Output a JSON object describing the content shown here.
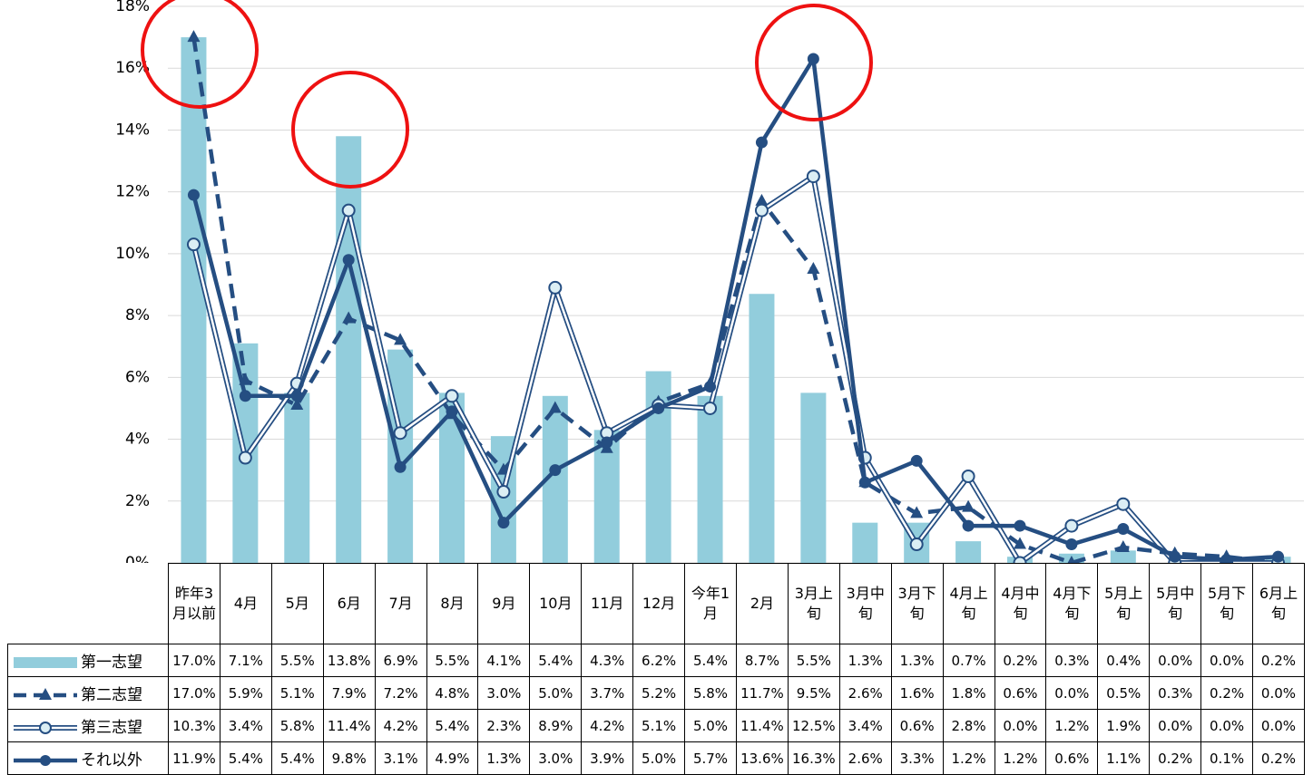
{
  "chart_data": {
    "type": "combo",
    "categories": [
      "昨年3月以前",
      "4月",
      "5月",
      "6月",
      "7月",
      "8月",
      "9月",
      "10月",
      "11月",
      "12月",
      "今年1月",
      "2月",
      "3月上旬",
      "3月中旬",
      "3月下旬",
      "4月上旬",
      "4月中旬",
      "4月下旬",
      "5月上旬",
      "5月中旬",
      "5月下旬",
      "6月上旬"
    ],
    "ylim": [
      0,
      18
    ],
    "yticks": [
      {
        "value": 0,
        "label": "0%"
      },
      {
        "value": 2,
        "label": "2%"
      },
      {
        "value": 4,
        "label": "4%"
      },
      {
        "value": 6,
        "label": "6%"
      },
      {
        "value": 8,
        "label": "8%"
      },
      {
        "value": 10,
        "label": "10%"
      },
      {
        "value": 12,
        "label": "12%"
      },
      {
        "value": 14,
        "label": "14%"
      },
      {
        "value": 16,
        "label": "16%"
      },
      {
        "value": 18,
        "label": "18%"
      }
    ],
    "grid": true,
    "series": [
      {
        "name": "第一志望",
        "type": "bar",
        "color": "#92cddc",
        "values": [
          17.0,
          7.1,
          5.5,
          13.8,
          6.9,
          5.5,
          4.1,
          5.4,
          4.3,
          6.2,
          5.4,
          8.7,
          5.5,
          1.3,
          1.3,
          0.7,
          0.2,
          0.3,
          0.4,
          0.0,
          0.0,
          0.2
        ],
        "value_labels": [
          "17.0%",
          "7.1%",
          "5.5%",
          "13.8%",
          "6.9%",
          "5.5%",
          "4.1%",
          "5.4%",
          "4.3%",
          "6.2%",
          "5.4%",
          "8.7%",
          "5.5%",
          "1.3%",
          "1.3%",
          "0.7%",
          "0.2%",
          "0.3%",
          "0.4%",
          "0.0%",
          "0.0%",
          "0.2%"
        ]
      },
      {
        "name": "第二志望",
        "type": "line",
        "line": "dashed",
        "marker": "triangle",
        "color": "#254e82",
        "values": [
          17.0,
          5.9,
          5.1,
          7.9,
          7.2,
          4.8,
          3.0,
          5.0,
          3.7,
          5.2,
          5.8,
          11.7,
          9.5,
          2.6,
          1.6,
          1.8,
          0.6,
          0.0,
          0.5,
          0.3,
          0.2,
          0.0
        ],
        "value_labels": [
          "17.0%",
          "5.9%",
          "5.1%",
          "7.9%",
          "7.2%",
          "4.8%",
          "3.0%",
          "5.0%",
          "3.7%",
          "5.2%",
          "5.8%",
          "11.7%",
          "9.5%",
          "2.6%",
          "1.6%",
          "1.8%",
          "0.6%",
          "0.0%",
          "0.5%",
          "0.3%",
          "0.2%",
          "0.0%"
        ]
      },
      {
        "name": "第三志望",
        "type": "line",
        "line": "double",
        "marker": "circle-open",
        "color": "#254e82",
        "values": [
          10.3,
          3.4,
          5.8,
          11.4,
          4.2,
          5.4,
          2.3,
          8.9,
          4.2,
          5.1,
          5.0,
          11.4,
          12.5,
          3.4,
          0.6,
          2.8,
          0.0,
          1.2,
          1.9,
          0.0,
          0.0,
          0.0
        ],
        "value_labels": [
          "10.3%",
          "3.4%",
          "5.8%",
          "11.4%",
          "4.2%",
          "5.4%",
          "2.3%",
          "8.9%",
          "4.2%",
          "5.1%",
          "5.0%",
          "11.4%",
          "12.5%",
          "3.4%",
          "0.6%",
          "2.8%",
          "0.0%",
          "1.2%",
          "1.9%",
          "0.0%",
          "0.0%",
          "0.0%"
        ]
      },
      {
        "name": "それ以外",
        "type": "line",
        "line": "solid",
        "marker": "circle",
        "color": "#254e82",
        "values": [
          11.9,
          5.4,
          5.4,
          9.8,
          3.1,
          4.9,
          1.3,
          3.0,
          3.9,
          5.0,
          5.7,
          13.6,
          16.3,
          2.6,
          3.3,
          1.2,
          1.2,
          0.6,
          1.1,
          0.2,
          0.1,
          0.2
        ],
        "value_labels": [
          "11.9%",
          "5.4%",
          "5.4%",
          "9.8%",
          "3.1%",
          "4.9%",
          "1.3%",
          "3.0%",
          "3.9%",
          "5.0%",
          "5.7%",
          "13.6%",
          "16.3%",
          "2.6%",
          "3.3%",
          "1.2%",
          "1.2%",
          "0.6%",
          "1.1%",
          "0.2%",
          "0.1%",
          "0.2%"
        ]
      }
    ]
  }
}
